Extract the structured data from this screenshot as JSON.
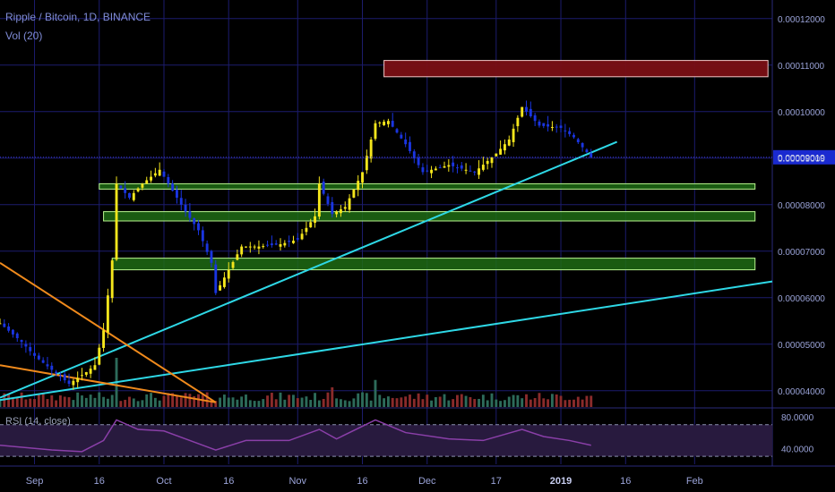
{
  "legend": {
    "title": "Ripple / Bitcoin, 1D, BINANCE",
    "volume": "Vol (20)",
    "rsi": "RSI (14, close)"
  },
  "colors": {
    "background": "#000000",
    "grid": "#1c1c6e",
    "up_candle": "#f5e61c",
    "down_candle": "#1a35e0",
    "trendline": "#2ed8e6",
    "orange_line": "#f08a1c",
    "support_zone": "#6ad94a",
    "resistance_zone": "#7a0f14",
    "vol_up": "#2d6b5a",
    "vol_down": "#8a2b2b",
    "rsi_line": "#8a3fa8",
    "rsi_band": "#281a3e",
    "axis_text": "#9aa3d8"
  },
  "chart_data": {
    "type": "candlestick",
    "symbol": "Ripple / Bitcoin",
    "interval": "1D",
    "exchange": "BINANCE",
    "y_axis_ticks": [
      "0.00012000",
      "0.00011000",
      "0.00010000",
      "0.00009000",
      "0.00008000",
      "0.00007000",
      "0.00006000",
      "0.00005000",
      "0.00004000"
    ],
    "y_tick_values": [
      0.00012,
      0.00011,
      0.0001,
      9e-05,
      8e-05,
      7e-05,
      6e-05,
      5e-05,
      4e-05
    ],
    "ylim": [
      3.65e-05,
      0.000124
    ],
    "current_price": "0.00009019",
    "current_price_value": 9.019e-05,
    "x_labels": [
      {
        "label": "Sep",
        "date": "2018-09-01"
      },
      {
        "label": "16",
        "date": "2018-09-16"
      },
      {
        "label": "Oct",
        "date": "2018-10-01"
      },
      {
        "label": "16",
        "date": "2018-10-16"
      },
      {
        "label": "Nov",
        "date": "2018-11-01"
      },
      {
        "label": "16",
        "date": "2018-11-16"
      },
      {
        "label": "Dec",
        "date": "2018-12-01"
      },
      {
        "label": "17",
        "date": "2018-12-17"
      },
      {
        "label": "2019",
        "date": "2019-01-01"
      },
      {
        "label": "16",
        "date": "2019-01-16"
      },
      {
        "label": "Feb",
        "date": "2019-02-01"
      }
    ],
    "xlim": [
      "2018-08-24",
      "2019-02-19"
    ],
    "price_series": [
      [
        "2018-08-24",
        5.45e-05
      ],
      [
        "2018-08-29",
        5.05e-05
      ],
      [
        "2018-09-01",
        4.75e-05
      ],
      [
        "2018-09-05",
        4.45e-05
      ],
      [
        "2018-09-09",
        4.15e-05
      ],
      [
        "2018-09-13",
        4.4e-05
      ],
      [
        "2018-09-15",
        4.55e-05
      ],
      [
        "2018-09-17",
        5.3e-05
      ],
      [
        "2018-09-19",
        6.8e-05
      ],
      [
        "2018-09-20",
        8.45e-05
      ],
      [
        "2018-09-23",
        8.15e-05
      ],
      [
        "2018-09-26",
        8.45e-05
      ],
      [
        "2018-09-30",
        8.75e-05
      ],
      [
        "2018-10-03",
        8.3e-05
      ],
      [
        "2018-10-06",
        7.85e-05
      ],
      [
        "2018-10-09",
        7.45e-05
      ],
      [
        "2018-10-12",
        6.75e-05
      ],
      [
        "2018-10-13",
        6.1e-05
      ],
      [
        "2018-10-16",
        6.6e-05
      ],
      [
        "2018-10-19",
        7.1e-05
      ],
      [
        "2018-10-23",
        7.1e-05
      ],
      [
        "2018-10-28",
        7.15e-05
      ],
      [
        "2018-11-01",
        7.25e-05
      ],
      [
        "2018-11-05",
        7.75e-05
      ],
      [
        "2018-11-06",
        8.45e-05
      ],
      [
        "2018-11-09",
        7.8e-05
      ],
      [
        "2018-11-12",
        7.95e-05
      ],
      [
        "2018-11-16",
        8.7e-05
      ],
      [
        "2018-11-19",
        9.75e-05
      ],
      [
        "2018-11-22",
        9.8e-05
      ],
      [
        "2018-11-26",
        9.3e-05
      ],
      [
        "2018-11-30",
        8.7e-05
      ],
      [
        "2018-12-06",
        8.85e-05
      ],
      [
        "2018-12-12",
        8.7e-05
      ],
      [
        "2018-12-17",
        9.1e-05
      ],
      [
        "2018-12-20",
        9.4e-05
      ],
      [
        "2018-12-23",
        0.000101
      ],
      [
        "2018-12-27",
        9.7e-05
      ],
      [
        "2019-01-01",
        9.65e-05
      ],
      [
        "2019-01-04",
        9.45e-05
      ],
      [
        "2019-01-08",
        9.019e-05
      ]
    ],
    "horizontal_zones": [
      {
        "type": "resistance",
        "low": 0.0001075,
        "high": 0.000111,
        "from": "2018-11-21",
        "to": "2019-02-18"
      },
      {
        "type": "support",
        "low": 8.35e-05,
        "high": 8.45e-05,
        "from": "2018-09-16",
        "to": "2019-02-15"
      },
      {
        "type": "support",
        "low": 7.65e-05,
        "high": 7.85e-05,
        "from": "2018-09-17",
        "to": "2019-02-15"
      },
      {
        "type": "support",
        "low": 6.6e-05,
        "high": 6.85e-05,
        "from": "2018-09-19",
        "to": "2019-02-15"
      }
    ],
    "trendlines": [
      {
        "color": "trendline",
        "from": [
          "2018-08-24",
          3.85e-05
        ],
        "to": [
          "2019-01-14",
          9.35e-05
        ]
      },
      {
        "color": "trendline",
        "from": [
          "2018-08-24",
          3.8e-05
        ],
        "to": [
          "2019-02-19",
          6.35e-05
        ]
      },
      {
        "color": "orange_line",
        "from": [
          "2018-08-24",
          6.75e-05
        ],
        "to": [
          "2018-10-13",
          3.75e-05
        ]
      },
      {
        "color": "orange_line",
        "from": [
          "2018-08-24",
          4.55e-05
        ],
        "to": [
          "2018-10-13",
          3.75e-05
        ]
      }
    ],
    "volume_spikes": [
      {
        "date": "2018-09-20",
        "rel": 1.0
      },
      {
        "date": "2018-11-19",
        "rel": 0.55
      },
      {
        "date": "2018-11-09",
        "rel": 0.4
      }
    ],
    "rsi": {
      "label": "RSI (14, close)",
      "y_axis_ticks": [
        "80.0000",
        "40.0000"
      ],
      "upper_band": 70,
      "lower_band": 30,
      "series": [
        [
          "2018-08-24",
          44
        ],
        [
          "2018-09-05",
          38
        ],
        [
          "2018-09-12",
          36
        ],
        [
          "2018-09-17",
          50
        ],
        [
          "2018-09-20",
          76
        ],
        [
          "2018-09-25",
          64
        ],
        [
          "2018-10-01",
          62
        ],
        [
          "2018-10-08",
          48
        ],
        [
          "2018-10-13",
          38
        ],
        [
          "2018-10-20",
          50
        ],
        [
          "2018-10-30",
          50
        ],
        [
          "2018-11-06",
          64
        ],
        [
          "2018-11-10",
          52
        ],
        [
          "2018-11-19",
          76
        ],
        [
          "2018-11-26",
          60
        ],
        [
          "2018-12-06",
          52
        ],
        [
          "2018-12-14",
          50
        ],
        [
          "2018-12-23",
          64
        ],
        [
          "2018-12-28",
          55
        ],
        [
          "2019-01-03",
          50
        ],
        [
          "2019-01-08",
          44
        ]
      ]
    }
  }
}
